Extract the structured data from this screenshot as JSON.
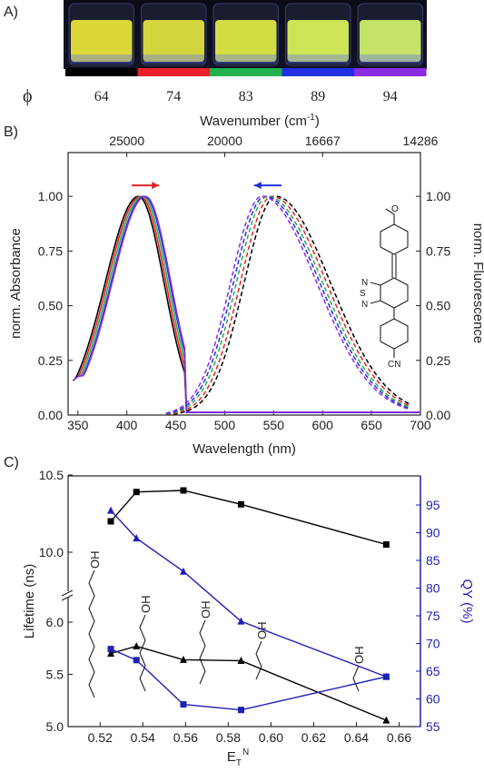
{
  "panels": {
    "a": {
      "label": "A)",
      "phi_symbol": "ϕ",
      "vials": [
        {
          "phi": "64",
          "bar_color": "#000000",
          "liquid": "#e6e13a"
        },
        {
          "phi": "74",
          "bar_color": "#e8202a",
          "liquid": "#dfe03e"
        },
        {
          "phi": "83",
          "bar_color": "#22b14c",
          "liquid": "#dce845"
        },
        {
          "phi": "89",
          "bar_color": "#2030e0",
          "liquid": "#d8ef5a"
        },
        {
          "phi": "94",
          "bar_color": "#8a2be2",
          "liquid": "#cfee6a"
        }
      ]
    },
    "b": {
      "label": "B)",
      "top_axis_title_main": "Wavenumber (cm",
      "top_axis_title_sup": "-1",
      "top_axis_title_end": ")",
      "xlabel": "Wavelength (nm)",
      "ylabel_left": "norm. Absorbance",
      "ylabel_right": "norm. Fluorescence",
      "structure_labels": {
        "methoxy": "O",
        "nitrogen": "N",
        "sulfur": "S",
        "cyano": "CN"
      }
    },
    "c": {
      "label": "C)",
      "xlabel_main": "E",
      "xlabel_sub": "T",
      "xlabel_sup": "N",
      "ylabel_left": "Lifetime (ns)",
      "ylabel_right": "QY (%)",
      "alcohol_label": "OH"
    }
  },
  "chart_data": [
    {
      "type": "line",
      "panel": "B",
      "title": "",
      "xlabel": "Wavelength (nm)",
      "ylabel": "norm. Absorbance",
      "ylabel_right": "norm. Fluorescence",
      "xlim": [
        340,
        700
      ],
      "ylim": [
        0,
        1.2
      ],
      "x_ticks": [
        350,
        400,
        450,
        500,
        550,
        600,
        650,
        700
      ],
      "y_ticks": [
        0.0,
        0.25,
        0.5,
        0.75,
        1.0
      ],
      "y_tick_labels": [
        "0.00",
        "0.25",
        "0.50",
        "0.75",
        "1.00"
      ],
      "top_axis": {
        "label": "Wavenumber (cm-1)",
        "tick_labels": [
          "25000",
          "20000",
          "16667",
          "14286"
        ],
        "tick_wavelengths_nm": [
          400,
          500,
          600,
          700
        ]
      },
      "absorption_series": [
        {
          "color": "#000000",
          "peak_nm": 412
        },
        {
          "color": "#e8202a",
          "peak_nm": 414
        },
        {
          "color": "#22b14c",
          "peak_nm": 416
        },
        {
          "color": "#2030e0",
          "peak_nm": 418
        },
        {
          "color": "#8a2be2",
          "peak_nm": 419
        }
      ],
      "emission_series": [
        {
          "color": "#000000",
          "peak_nm": 552,
          "style": "dashed"
        },
        {
          "color": "#e8202a",
          "peak_nm": 548,
          "style": "dashed"
        },
        {
          "color": "#22b14c",
          "peak_nm": 544,
          "style": "dashed"
        },
        {
          "color": "#2030e0",
          "peak_nm": 541,
          "style": "dashed"
        },
        {
          "color": "#8a2be2",
          "peak_nm": 538,
          "style": "dashed"
        }
      ],
      "arrows": [
        {
          "color": "#e8202a",
          "direction": "right",
          "from_nm": 405,
          "to_nm": 433
        },
        {
          "color": "#2030e0",
          "direction": "left",
          "from_nm": 558,
          "to_nm": 530
        }
      ]
    },
    {
      "type": "line",
      "panel": "C",
      "title": "",
      "xlabel": "E_T^N",
      "ylabel": "Lifetime (ns)",
      "ylabel_right": "QY (%)",
      "xlim": [
        0.505,
        0.67
      ],
      "x_ticks": [
        0.52,
        0.54,
        0.56,
        0.58,
        0.6,
        0.62,
        0.64,
        0.66
      ],
      "y_ticks_left": [
        5.0,
        5.5,
        6.0,
        10.0,
        10.5
      ],
      "y_tick_labels_left": [
        "5.0",
        "5.5",
        "6.0",
        "10.0",
        "10.5"
      ],
      "y_axis_break": [
        6.2,
        9.8
      ],
      "y_ticks_right": [
        55,
        60,
        65,
        70,
        75,
        80,
        85,
        90,
        95
      ],
      "ylim_right": [
        55,
        97
      ],
      "series": [
        {
          "name": "",
          "color": "#000000",
          "marker": "square",
          "axis": "left",
          "x": [
            0.525,
            0.537,
            0.559,
            0.586,
            0.654
          ],
          "y": [
            10.2,
            10.39,
            10.4,
            10.31,
            10.05
          ]
        },
        {
          "name": "",
          "color": "#000000",
          "marker": "triangle",
          "axis": "left",
          "x": [
            0.525,
            0.537,
            0.559,
            0.586,
            0.654
          ],
          "y": [
            5.7,
            5.77,
            5.64,
            5.63,
            5.06
          ]
        },
        {
          "name": "",
          "color": "#1f1fb4",
          "marker": "triangle",
          "axis": "right",
          "x": [
            0.525,
            0.537,
            0.559,
            0.586,
            0.654
          ],
          "y": [
            94,
            89,
            83,
            74,
            64
          ]
        },
        {
          "name": "",
          "color": "#1f1fb4",
          "marker": "square",
          "axis": "right",
          "x": [
            0.525,
            0.537,
            0.559,
            0.586,
            0.654
          ],
          "y": [
            69,
            67,
            59,
            58,
            64
          ]
        }
      ]
    }
  ]
}
